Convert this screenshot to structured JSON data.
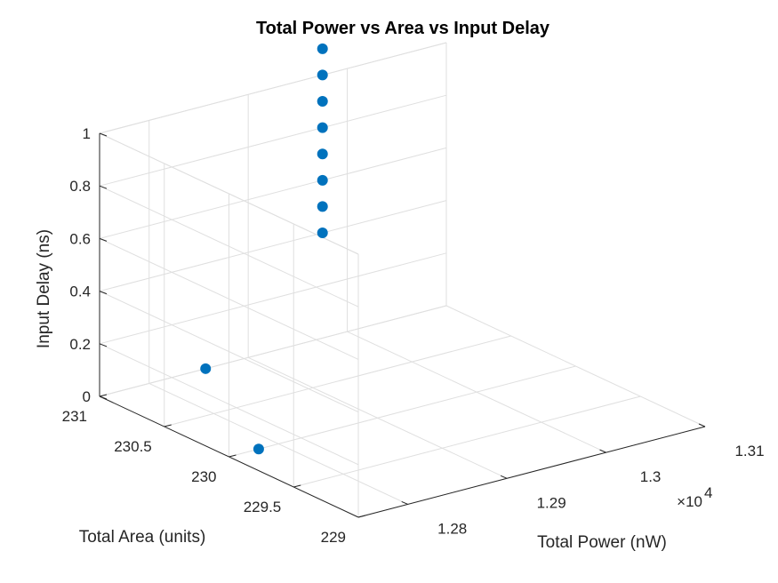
{
  "chart_data": {
    "type": "scatter3d",
    "title": "Total Power vs Area vs Input Delay",
    "xlabel": "Total Power (nW)",
    "ylabel": "Total Area (units)",
    "zlabel": "Input Delay (ns)",
    "x_multiplier": "×10",
    "x_multiplier_exp": "4",
    "xlim": [
      12750,
      13100
    ],
    "ylim": [
      229,
      231
    ],
    "zlim": [
      0,
      1
    ],
    "x_ticks": [
      12800,
      12900,
      13000,
      13100
    ],
    "x_tick_labels": [
      "1.28",
      "1.29",
      "1.3",
      "1.31"
    ],
    "y_ticks": [
      229,
      229.5,
      230,
      230.5,
      231
    ],
    "y_tick_labels": [
      "229",
      "229.5",
      "230",
      "230.5",
      "231"
    ],
    "z_ticks": [
      0,
      0.2,
      0.4,
      0.6,
      0.8,
      1
    ],
    "z_tick_labels": [
      "0",
      "0.2",
      "0.4",
      "0.6",
      "0.8",
      "1"
    ],
    "grid": true,
    "marker_color": "#0072BD",
    "points": [
      {
        "x": 12780,
        "y": 230,
        "z": 0
      },
      {
        "x": 12857,
        "y": 231,
        "z": 0
      },
      {
        "x": 12975,
        "y": 231,
        "z": 0.4
      },
      {
        "x": 12975,
        "y": 231,
        "z": 0.5
      },
      {
        "x": 12975,
        "y": 231,
        "z": 0.6
      },
      {
        "x": 12975,
        "y": 231,
        "z": 0.7
      },
      {
        "x": 12975,
        "y": 231,
        "z": 0.8
      },
      {
        "x": 12975,
        "y": 231,
        "z": 0.9
      },
      {
        "x": 12975,
        "y": 231,
        "z": 1.0
      },
      {
        "x": 12975,
        "y": 231,
        "z": 1.1
      }
    ]
  }
}
